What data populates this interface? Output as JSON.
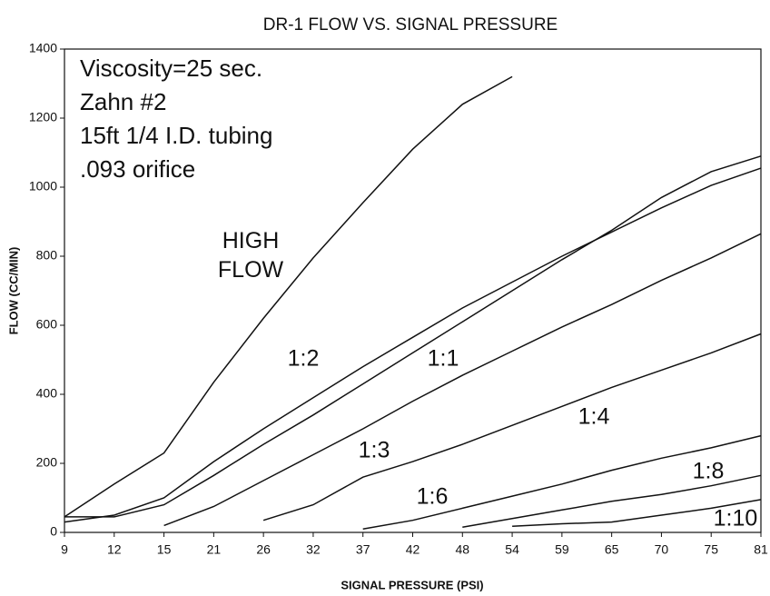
{
  "chart_data": {
    "type": "line",
    "title": "DR-1 FLOW VS. SIGNAL PRESSURE",
    "x_label": "SIGNAL PRESSURE (PSI)",
    "y_label": "FLOW (CC/MIN)",
    "annotations": [
      "Viscosity=25 sec.",
      "Zahn #2",
      "15ft 1/4 I.D. tubing",
      ".093 orifice"
    ],
    "categories": [
      "9",
      "12",
      "15",
      "21",
      "26",
      "32",
      "37",
      "42",
      "48",
      "54",
      "59",
      "65",
      "70",
      "75",
      "81"
    ],
    "ylim": [
      0,
      1400
    ],
    "yticks": [
      0,
      200,
      400,
      600,
      800,
      1000,
      1200,
      1400
    ],
    "series": [
      {
        "name": "HIGH FLOW",
        "color": "#111111",
        "values": [
          45,
          140,
          230,
          435,
          620,
          795,
          955,
          1110,
          1240,
          1320,
          null,
          null,
          null,
          null,
          null
        ]
      },
      {
        "name": "1:2",
        "color": "#111111",
        "values": [
          30,
          50,
          100,
          205,
          300,
          390,
          480,
          565,
          650,
          725,
          800,
          870,
          940,
          1005,
          1055
        ]
      },
      {
        "name": "1:1",
        "color": "#111111",
        "values": [
          45,
          45,
          80,
          165,
          255,
          340,
          430,
          520,
          610,
          700,
          790,
          875,
          970,
          1045,
          1090
        ]
      },
      {
        "name": "1:3",
        "color": "#111111",
        "values": [
          null,
          null,
          20,
          75,
          150,
          225,
          300,
          380,
          455,
          525,
          595,
          660,
          730,
          795,
          865
        ]
      },
      {
        "name": "1:4",
        "color": "#111111",
        "values": [
          null,
          null,
          null,
          null,
          35,
          80,
          160,
          205,
          255,
          310,
          365,
          420,
          470,
          520,
          575
        ]
      },
      {
        "name": "1:6",
        "color": "#111111",
        "values": [
          null,
          null,
          null,
          null,
          null,
          null,
          10,
          35,
          70,
          105,
          140,
          180,
          215,
          245,
          280
        ]
      },
      {
        "name": "1:8",
        "color": "#111111",
        "values": [
          null,
          null,
          null,
          null,
          null,
          null,
          null,
          null,
          15,
          40,
          65,
          90,
          110,
          135,
          165
        ]
      },
      {
        "name": "1:10",
        "color": "#111111",
        "values": [
          null,
          null,
          null,
          null,
          null,
          null,
          null,
          null,
          null,
          18,
          25,
          30,
          50,
          70,
          95
        ]
      }
    ]
  }
}
